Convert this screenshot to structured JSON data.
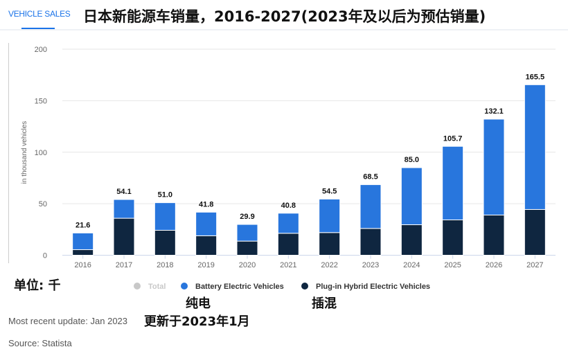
{
  "header": {
    "tab": "VEHICLE SALES",
    "title": "日本新能源车销量，2016-2027(2023年及以后为预估销量)"
  },
  "chart_data": {
    "type": "bar",
    "stacked": true,
    "categories": [
      "2016",
      "2017",
      "2018",
      "2019",
      "2020",
      "2021",
      "2022",
      "2023",
      "2024",
      "2025",
      "2026",
      "2027"
    ],
    "series": [
      {
        "name": "Plug-in Hybrid Electric Vehicles",
        "color": "#0f2640",
        "values": [
          5.4,
          35.9,
          24.2,
          18.9,
          13.7,
          21.3,
          22.0,
          26.0,
          29.6,
          34.3,
          39.0,
          44.4
        ]
      },
      {
        "name": "Battery Electric Vehicles",
        "color": "#2876dd",
        "values": [
          16.2,
          18.2,
          26.8,
          22.9,
          16.2,
          19.5,
          32.5,
          42.5,
          55.4,
          71.4,
          93.1,
          121.1
        ]
      }
    ],
    "totals": [
      "21.6",
      "54.1",
      "51.0",
      "41.8",
      "29.9",
      "40.8",
      "54.5",
      "68.5",
      "85.0",
      "105.7",
      "132.1",
      "165.5"
    ],
    "legend": [
      {
        "name": "Total",
        "color": "#c8c8c8"
      },
      {
        "name": "Battery Electric Vehicles",
        "color": "#2876dd"
      },
      {
        "name": "Plug-in Hybrid Electric Vehicles",
        "color": "#0f2640"
      }
    ],
    "ylabel": "in thousand vehicles",
    "ylim": [
      0,
      200
    ],
    "yticks": [
      "0",
      "50",
      "100",
      "150",
      "200"
    ],
    "grid": true,
    "legend_position": "bottom"
  },
  "annotations": {
    "unit": "单位: 千",
    "bev": "纯电",
    "phev": "插混",
    "updated_cn": "更新于2023年1月"
  },
  "footer": {
    "update": "Most recent update: Jan 2023",
    "source": "Source: Statista"
  }
}
